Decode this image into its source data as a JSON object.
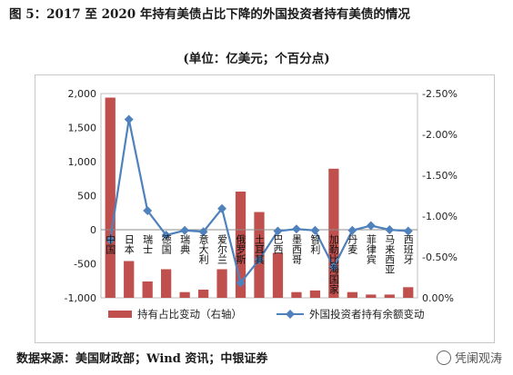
{
  "title": "图 5：2017 至 2020 年持有美债占比下降的外国投资者持有美债的情况",
  "subtitle": "(单位：亿美元；个百分点)",
  "source": "数据来源：美国财政部；Wind 资讯；中银证券",
  "watermark": "凭阑观涛",
  "chart_data": {
    "type": "bar",
    "categories": [
      "中国",
      "日本",
      "瑞士",
      "德国",
      "瑞典",
      "意大利",
      "爱尔兰",
      "俄罗斯",
      "土耳其",
      "巴西",
      "墨西哥",
      "智利",
      "加勒比海国家",
      "丹麦",
      "菲律宾",
      "马来西亚",
      "西班牙"
    ],
    "series": [
      {
        "name": "持有占比变动（右轴）",
        "type": "bar",
        "axis": "right",
        "color": "#c0504d",
        "values": [
          -2.45,
          -0.45,
          -0.2,
          -0.35,
          -0.07,
          -0.1,
          -0.35,
          -1.3,
          -1.05,
          -0.55,
          -0.07,
          -0.09,
          -1.58,
          -0.07,
          -0.04,
          -0.04,
          -0.13
        ]
      },
      {
        "name": "外国投资者持有余额变动",
        "type": "line",
        "axis": "left",
        "color": "#4f81bd",
        "values": [
          -150,
          1620,
          280,
          -80,
          -10,
          -30,
          310,
          -780,
          -440,
          -20,
          10,
          -10,
          -550,
          -10,
          60,
          0,
          -20
        ]
      }
    ],
    "yleft": {
      "min": -1000,
      "max": 2000,
      "ticks": [
        "-1,000",
        "-500",
        "0",
        "500",
        "1,000",
        "1,500",
        "2,000"
      ]
    },
    "yright": {
      "min": -2.5,
      "max": 0,
      "reversed": true,
      "ticks": [
        "0.00%",
        "-0.50%",
        "-1.00%",
        "-1.50%",
        "-2.00%",
        "-2.50%"
      ]
    },
    "legend_position": "bottom"
  }
}
